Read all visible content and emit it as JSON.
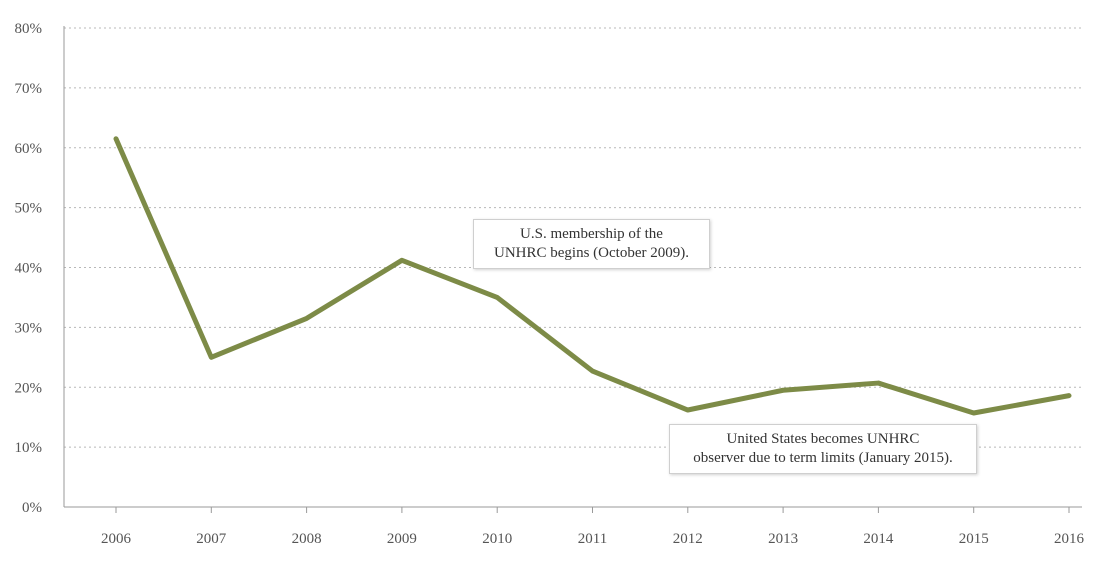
{
  "chart_data": {
    "type": "line",
    "title": "",
    "xlabel": "",
    "ylabel": "",
    "x": [
      "2006",
      "2007",
      "2008",
      "2009",
      "2010",
      "2011",
      "2012",
      "2013",
      "2014",
      "2015",
      "2016"
    ],
    "series": [
      {
        "values": [
          61.5,
          25.0,
          31.5,
          41.2,
          35.0,
          22.7,
          16.2,
          19.5,
          20.7,
          15.7,
          18.6
        ]
      }
    ],
    "ylim": [
      0,
      80
    ],
    "yticks": [
      0,
      10,
      20,
      30,
      40,
      50,
      60,
      70,
      80
    ],
    "ytick_labels": [
      "0%",
      "10%",
      "20%",
      "30%",
      "40%",
      "50%",
      "60%",
      "70%",
      "80%"
    ],
    "grid": true,
    "line_color": "#7d8b47",
    "annotations": [
      {
        "lines": [
          "U.S. membership of the",
          "UNHRC begins (October 2009)."
        ]
      },
      {
        "lines": [
          "United States becomes UNHRC",
          "observer due to term limits (January 2015)."
        ]
      }
    ]
  }
}
